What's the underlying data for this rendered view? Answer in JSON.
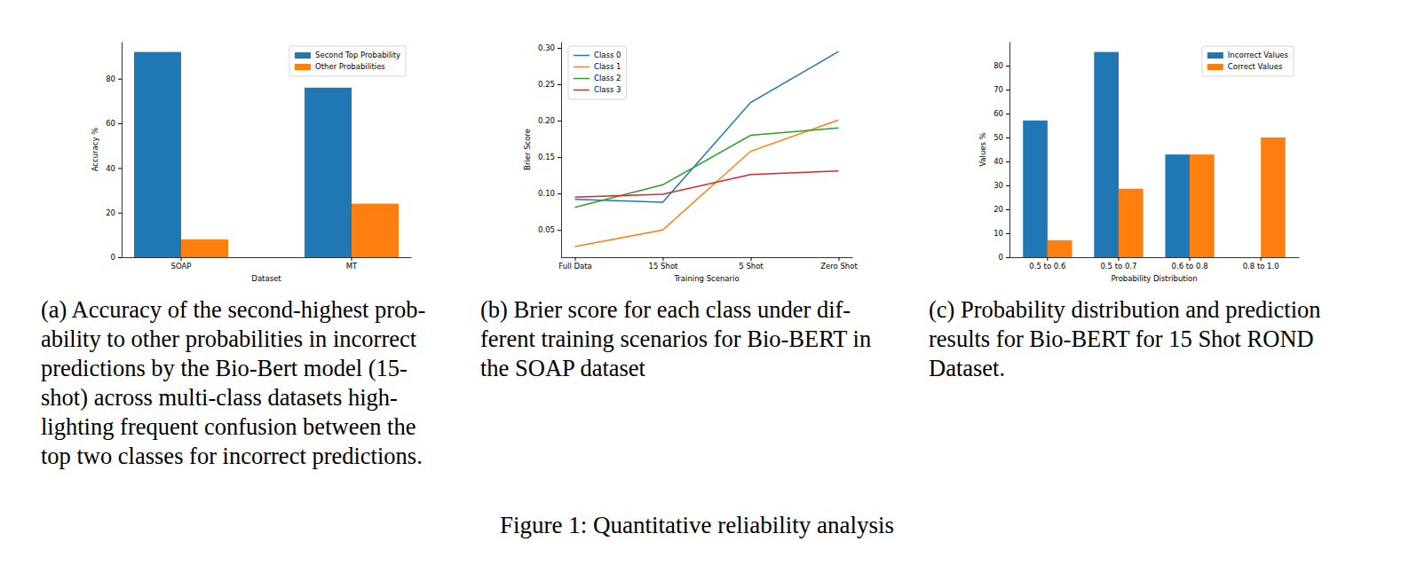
{
  "title": "Figure 1: Quantitative reliability analysis",
  "chart_data": [
    {
      "type": "bar",
      "x_label": "Dataset",
      "y_label": "Accuracy %",
      "categories": [
        "SOAP",
        "MT"
      ],
      "series": [
        {
          "name": "Second Top Probability",
          "color": "#1f77b4",
          "values": [
            92,
            76
          ]
        },
        {
          "name": "Other Probabilities",
          "color": "#ff7f0e",
          "values": [
            8,
            24
          ]
        }
      ],
      "ylim": [
        0,
        96.6
      ],
      "yticks": [
        0,
        20,
        40,
        60,
        80
      ],
      "legend": "upper right",
      "grid": false,
      "caption": [
        "(a) Accuracy of the second-highest prob-",
        "ability to other probabilities in incorrect",
        "predictions by the Bio-Bert model (15-",
        "shot) across multi-class datasets high-",
        "lighting frequent confusion between the",
        "top two classes for incorrect predictions."
      ]
    },
    {
      "type": "line",
      "x_label": "Training Scenario",
      "y_label": "Brier Score",
      "categories": [
        "Full Data",
        "15 Shot",
        "5 Shot",
        "Zero Shot"
      ],
      "series": [
        {
          "name": "Class 0",
          "color": "#1f77b4",
          "values": [
            0.092,
            0.088,
            0.225,
            0.295
          ]
        },
        {
          "name": "Class 1",
          "color": "#ff7f0e",
          "values": [
            0.027,
            0.05,
            0.158,
            0.201
          ]
        },
        {
          "name": "Class 2",
          "color": "#2ca02c",
          "values": [
            0.081,
            0.112,
            0.18,
            0.19
          ]
        },
        {
          "name": "Class 3",
          "color": "#d62728",
          "values": [
            0.095,
            0.099,
            0.126,
            0.131
          ]
        }
      ],
      "ylim": [
        0.0125,
        0.3085
      ],
      "yticks": [
        0.05,
        {
          "value": 0.1,
          "label": "0.10"
        },
        0.15,
        {
          "value": 0.2,
          "label": "0.20"
        },
        0.25,
        {
          "value": 0.3,
          "label": "0.30"
        }
      ],
      "legend": "upper left",
      "grid": false,
      "caption": [
        "(b) Brier score for each class under dif-",
        "ferent training scenarios for Bio-BERT in",
        "the SOAP dataset"
      ]
    },
    {
      "type": "bar",
      "x_label": "Probability Distribution",
      "y_label": "Values %",
      "categories": [
        "0.5 to 0.6",
        "0.5 to 0.7",
        "0.6 to 0.8",
        "0.8 to 1.0"
      ],
      "series": [
        {
          "name": "Incorrect Values",
          "color": "#1f77b4",
          "values": [
            57.1,
            85.7,
            42.9,
            0
          ]
        },
        {
          "name": "Correct Values",
          "color": "#ff7f0e",
          "values": [
            7.1,
            28.6,
            42.9,
            50
          ]
        }
      ],
      "ylim": [
        0,
        90
      ],
      "yticks": [
        0,
        10,
        20,
        30,
        40,
        50,
        60,
        70,
        80
      ],
      "legend": "upper right",
      "grid": false,
      "caption": [
        "(c) Probability distribution and prediction",
        "results for Bio-BERT for 15 Shot ROND",
        "Dataset."
      ]
    }
  ]
}
